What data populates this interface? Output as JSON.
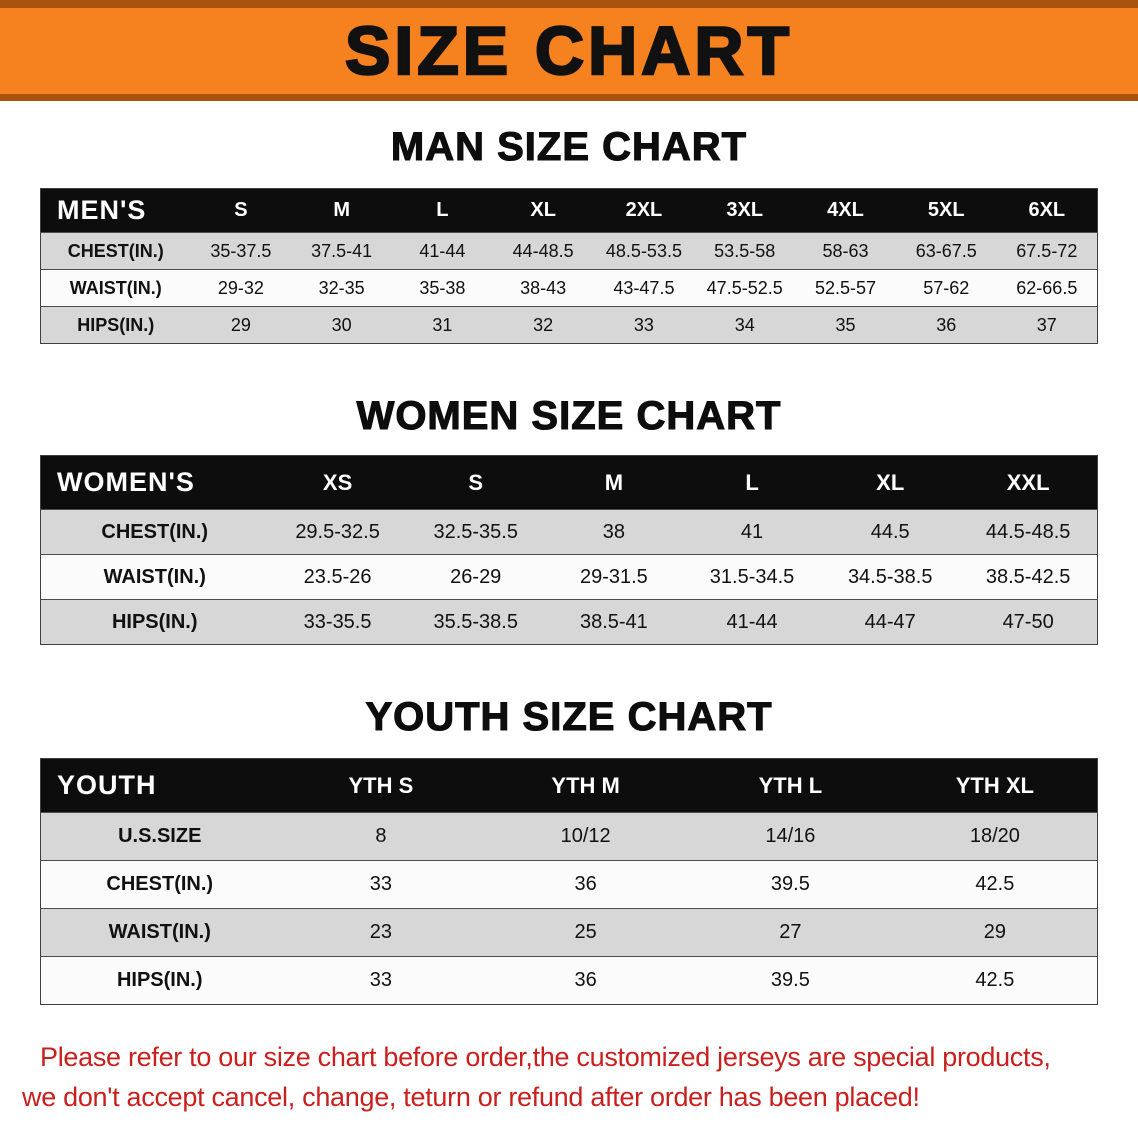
{
  "banner": {
    "title": "SIZE CHART"
  },
  "colors": {
    "banner_bg": "#f5821f",
    "banner_edge": "#a8520e",
    "header_bg": "#0d0d0d",
    "row_gray": "#d7d7d7",
    "row_white": "#fbfbfb",
    "footer_red": "#c9201e"
  },
  "sections": [
    {
      "id": "men",
      "heading": "MAN SIZE CHART",
      "corner": "MEN'S",
      "columns": [
        "S",
        "M",
        "L",
        "XL",
        "2XL",
        "3XL",
        "4XL",
        "5XL",
        "6XL"
      ],
      "rows": [
        {
          "label": "CHEST(IN.)",
          "values": [
            "35-37.5",
            "37.5-41",
            "41-44",
            "44-48.5",
            "48.5-53.5",
            "53.5-58",
            "58-63",
            "63-67.5",
            "67.5-72"
          ]
        },
        {
          "label": "WAIST(IN.)",
          "values": [
            "29-32",
            "32-35",
            "35-38",
            "38-43",
            "43-47.5",
            "47.5-52.5",
            "52.5-57",
            "57-62",
            "62-66.5"
          ]
        },
        {
          "label": "HIPS(IN.)",
          "values": [
            "29",
            "30",
            "31",
            "32",
            "33",
            "34",
            "35",
            "36",
            "37"
          ]
        }
      ]
    },
    {
      "id": "women",
      "heading": "WOMEN SIZE CHART",
      "corner": "WOMEN'S",
      "columns": [
        "XS",
        "S",
        "M",
        "L",
        "XL",
        "XXL"
      ],
      "rows": [
        {
          "label": "CHEST(IN.)",
          "values": [
            "29.5-32.5",
            "32.5-35.5",
            "38",
            "41",
            "44.5",
            "44.5-48.5"
          ]
        },
        {
          "label": "WAIST(IN.)",
          "values": [
            "23.5-26",
            "26-29",
            "29-31.5",
            "31.5-34.5",
            "34.5-38.5",
            "38.5-42.5"
          ]
        },
        {
          "label": "HIPS(IN.)",
          "values": [
            "33-35.5",
            "35.5-38.5",
            "38.5-41",
            "41-44",
            "44-47",
            "47-50"
          ]
        }
      ]
    },
    {
      "id": "youth",
      "heading": "YOUTH SIZE CHART",
      "corner": "YOUTH",
      "columns": [
        "YTH S",
        "YTH M",
        "YTH L",
        "YTH XL"
      ],
      "rows": [
        {
          "label": "U.S.SIZE",
          "values": [
            "8",
            "10/12",
            "14/16",
            "18/20"
          ]
        },
        {
          "label": "CHEST(IN.)",
          "values": [
            "33",
            "36",
            "39.5",
            "42.5"
          ]
        },
        {
          "label": "WAIST(IN.)",
          "values": [
            "23",
            "25",
            "27",
            "29"
          ]
        },
        {
          "label": "HIPS(IN.)",
          "values": [
            "33",
            "36",
            "39.5",
            "42.5"
          ]
        }
      ]
    }
  ],
  "footer": {
    "line1": "Please refer to our size chart before order,the customized jerseys are special products,",
    "line2": "we don't accept cancel, change, teturn or refund after order has been placed!"
  }
}
